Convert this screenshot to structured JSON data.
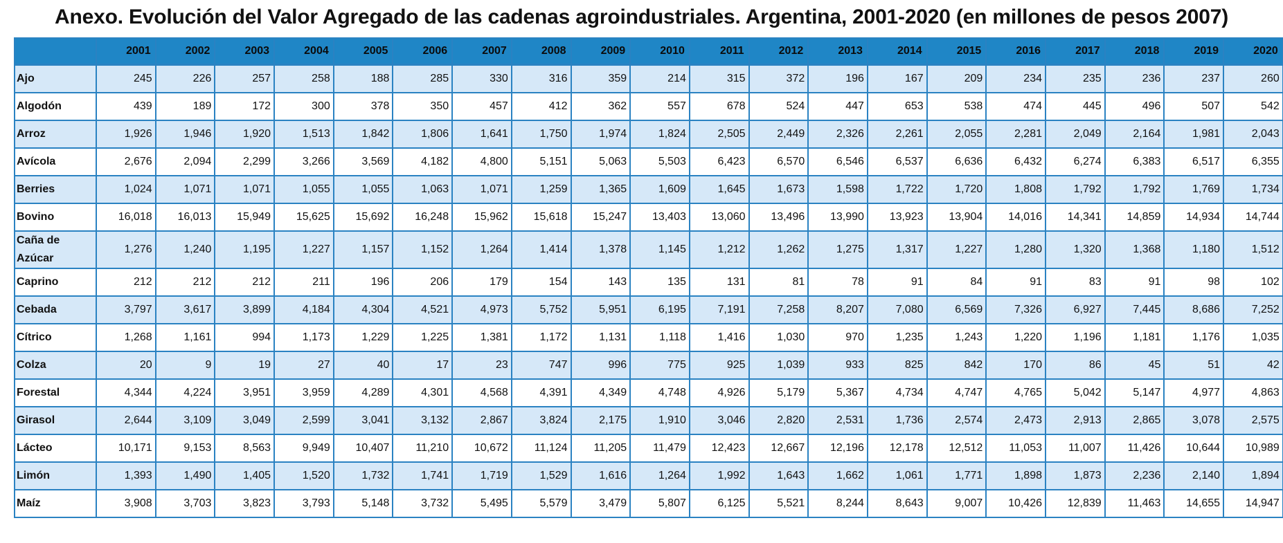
{
  "title": "Anexo. Evolución del Valor Agregado de las cadenas agroindustriales. Argentina, 2001-2020 (en millones de pesos 2007)",
  "table": {
    "years": [
      "2001",
      "2002",
      "2003",
      "2004",
      "2005",
      "2006",
      "2007",
      "2008",
      "2009",
      "2010",
      "2011",
      "2012",
      "2013",
      "2014",
      "2015",
      "2016",
      "2017",
      "2018",
      "2019",
      "2020"
    ],
    "rows": [
      {
        "name": "Ajo",
        "values": [
          "245",
          "226",
          "257",
          "258",
          "188",
          "285",
          "330",
          "316",
          "359",
          "214",
          "315",
          "372",
          "196",
          "167",
          "209",
          "234",
          "235",
          "236",
          "237",
          "260"
        ]
      },
      {
        "name": "Algodón",
        "values": [
          "439",
          "189",
          "172",
          "300",
          "378",
          "350",
          "457",
          "412",
          "362",
          "557",
          "678",
          "524",
          "447",
          "653",
          "538",
          "474",
          "445",
          "496",
          "507",
          "542"
        ]
      },
      {
        "name": "Arroz",
        "values": [
          "1,926",
          "1,946",
          "1,920",
          "1,513",
          "1,842",
          "1,806",
          "1,641",
          "1,750",
          "1,974",
          "1,824",
          "2,505",
          "2,449",
          "2,326",
          "2,261",
          "2,055",
          "2,281",
          "2,049",
          "2,164",
          "1,981",
          "2,043"
        ]
      },
      {
        "name": "Avícola",
        "values": [
          "2,676",
          "2,094",
          "2,299",
          "3,266",
          "3,569",
          "4,182",
          "4,800",
          "5,151",
          "5,063",
          "5,503",
          "6,423",
          "6,570",
          "6,546",
          "6,537",
          "6,636",
          "6,432",
          "6,274",
          "6,383",
          "6,517",
          "6,355"
        ]
      },
      {
        "name": "Berries",
        "values": [
          "1,024",
          "1,071",
          "1,071",
          "1,055",
          "1,055",
          "1,063",
          "1,071",
          "1,259",
          "1,365",
          "1,609",
          "1,645",
          "1,673",
          "1,598",
          "1,722",
          "1,720",
          "1,808",
          "1,792",
          "1,792",
          "1,769",
          "1,734"
        ]
      },
      {
        "name": "Bovino",
        "values": [
          "16,018",
          "16,013",
          "15,949",
          "15,625",
          "15,692",
          "16,248",
          "15,962",
          "15,618",
          "15,247",
          "13,403",
          "13,060",
          "13,496",
          "13,990",
          "13,923",
          "13,904",
          "14,016",
          "14,341",
          "14,859",
          "14,934",
          "14,744"
        ]
      },
      {
        "name": "Caña de Azúcar",
        "values": [
          "1,276",
          "1,240",
          "1,195",
          "1,227",
          "1,157",
          "1,152",
          "1,264",
          "1,414",
          "1,378",
          "1,145",
          "1,212",
          "1,262",
          "1,275",
          "1,317",
          "1,227",
          "1,280",
          "1,320",
          "1,368",
          "1,180",
          "1,512"
        ]
      },
      {
        "name": "Caprino",
        "values": [
          "212",
          "212",
          "212",
          "211",
          "196",
          "206",
          "179",
          "154",
          "143",
          "135",
          "131",
          "81",
          "78",
          "91",
          "84",
          "91",
          "83",
          "91",
          "98",
          "102"
        ]
      },
      {
        "name": "Cebada",
        "values": [
          "3,797",
          "3,617",
          "3,899",
          "4,184",
          "4,304",
          "4,521",
          "4,973",
          "5,752",
          "5,951",
          "6,195",
          "7,191",
          "7,258",
          "8,207",
          "7,080",
          "6,569",
          "7,326",
          "6,927",
          "7,445",
          "8,686",
          "7,252"
        ]
      },
      {
        "name": "Cítrico",
        "values": [
          "1,268",
          "1,161",
          "994",
          "1,173",
          "1,229",
          "1,225",
          "1,381",
          "1,172",
          "1,131",
          "1,118",
          "1,416",
          "1,030",
          "970",
          "1,235",
          "1,243",
          "1,220",
          "1,196",
          "1,181",
          "1,176",
          "1,035"
        ]
      },
      {
        "name": "Colza",
        "values": [
          "20",
          "9",
          "19",
          "27",
          "40",
          "17",
          "23",
          "747",
          "996",
          "775",
          "925",
          "1,039",
          "933",
          "825",
          "842",
          "170",
          "86",
          "45",
          "51",
          "42"
        ]
      },
      {
        "name": "Forestal",
        "values": [
          "4,344",
          "4,224",
          "3,951",
          "3,959",
          "4,289",
          "4,301",
          "4,568",
          "4,391",
          "4,349",
          "4,748",
          "4,926",
          "5,179",
          "5,367",
          "4,734",
          "4,747",
          "4,765",
          "5,042",
          "5,147",
          "4,977",
          "4,863"
        ]
      },
      {
        "name": "Girasol",
        "values": [
          "2,644",
          "3,109",
          "3,049",
          "2,599",
          "3,041",
          "3,132",
          "2,867",
          "3,824",
          "2,175",
          "1,910",
          "3,046",
          "2,820",
          "2,531",
          "1,736",
          "2,574",
          "2,473",
          "2,913",
          "2,865",
          "3,078",
          "2,575"
        ]
      },
      {
        "name": "Lácteo",
        "values": [
          "10,171",
          "9,153",
          "8,563",
          "9,949",
          "10,407",
          "11,210",
          "10,672",
          "11,124",
          "11,205",
          "11,479",
          "12,423",
          "12,667",
          "12,196",
          "12,178",
          "12,512",
          "11,053",
          "11,007",
          "11,426",
          "10,644",
          "10,989"
        ]
      },
      {
        "name": "Limón",
        "values": [
          "1,393",
          "1,490",
          "1,405",
          "1,520",
          "1,732",
          "1,741",
          "1,719",
          "1,529",
          "1,616",
          "1,264",
          "1,992",
          "1,643",
          "1,662",
          "1,061",
          "1,771",
          "1,898",
          "1,873",
          "2,236",
          "2,140",
          "1,894"
        ]
      },
      {
        "name": "Maíz",
        "values": [
          "3,908",
          "3,703",
          "3,823",
          "3,793",
          "5,148",
          "3,732",
          "5,495",
          "5,579",
          "3,479",
          "5,807",
          "6,125",
          "5,521",
          "8,244",
          "8,643",
          "9,007",
          "10,426",
          "12,839",
          "11,463",
          "14,655",
          "14,947"
        ]
      }
    ]
  }
}
